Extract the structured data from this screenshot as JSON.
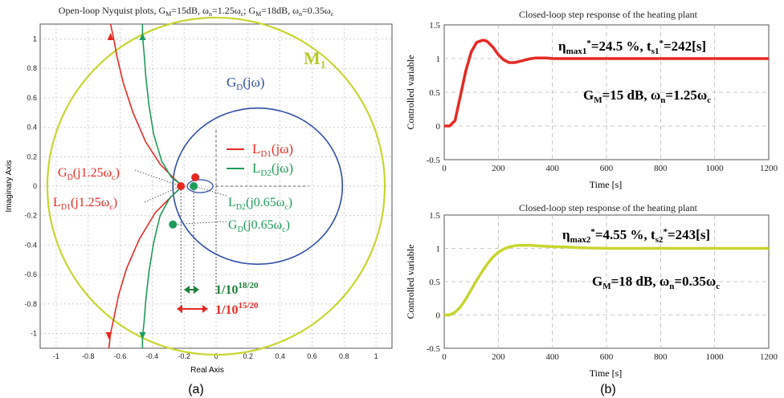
{
  "colors": {
    "red": "#e52a24",
    "green": "#1e9b5a",
    "blue": "#2e4ea6",
    "yellow_green": "#c8d630",
    "dark_green": "#1e7f3a",
    "grid": "#b8b8b8",
    "axis_text": "#222222"
  },
  "figure_labels": {
    "a": "(a)",
    "b": "(b)"
  },
  "chart_data": [
    {
      "type": "line",
      "title": "Open-loop Nyquist plots, G_M=15dB, ω_n=1.25ω_c; G_M=18dB, ω_n=0.35ω_c",
      "title_parts": {
        "p1": "Open-loop Nyquist plots, G",
        "s1": "M",
        "p2": "=15dB, ω",
        "s2": "n",
        "p3": "=1.25ω",
        "s3": "c",
        "p4": "; G",
        "s4": "M",
        "p5": "=18dB, ω",
        "s5": "n",
        "p6": "=0.35ω",
        "s6": "c"
      },
      "xlabel": "Real Axis",
      "ylabel": "Imaginary Axis",
      "xlim": [
        -1.1,
        1.1
      ],
      "ylim": [
        -1.1,
        1.1
      ],
      "xticks": [
        -1,
        -0.8,
        -0.6,
        -0.4,
        -0.2,
        0,
        0.2,
        0.4,
        0.6,
        0.8,
        1
      ],
      "xtick_labels": [
        "-1",
        "-0.8",
        "-0.6",
        "-0.4",
        "-0.2",
        "0",
        "0.2",
        "0.4",
        "0.6",
        "0.8",
        "1"
      ],
      "yticks": [
        -1,
        -0.8,
        -0.6,
        -0.4,
        -0.2,
        0,
        0.2,
        0.4,
        0.6,
        0.8,
        1
      ],
      "ytick_labels": [
        "-1",
        "-0.8",
        "-0.6",
        "-0.4",
        "-0.2",
        "0",
        "0.2",
        "0.4",
        "0.6",
        "0.8",
        "1"
      ],
      "grid": true,
      "series": [
        {
          "name": "G_D(jω)",
          "color": "#2e4ea6",
          "x": [
            -0.08,
            -0.14,
            -0.2,
            -0.24,
            -0.27,
            -0.28,
            -0.27,
            -0.23,
            -0.17,
            -0.08,
            0.02,
            0.13,
            0.24,
            0.35,
            0.45,
            0.55,
            0.63,
            0.7,
            0.75,
            0.78,
            0.79,
            0.79,
            0.78,
            0.75,
            0.7,
            0.63,
            0.55,
            0.45,
            0.35,
            0.24,
            0.13,
            0.02,
            -0.08,
            -0.17,
            -0.23,
            -0.27,
            -0.28,
            -0.27,
            -0.24,
            -0.2,
            -0.14,
            -0.08,
            -0.03,
            0.0,
            0.01,
            0.0,
            -0.04,
            -0.1,
            -0.16,
            -0.2,
            -0.22
          ],
          "y": [
            0.31,
            0.35,
            0.38,
            0.39,
            0.36,
            0.3,
            0.22,
            0.14,
            0.06,
            0.0,
            -0.05,
            0.02,
            -0.03,
            0.01,
            -0.02,
            0.01,
            -0.01,
            0.0,
            0.0,
            0.0,
            0.0,
            0.0,
            0.0,
            0.0,
            0.0,
            0.0,
            0.0,
            0.0,
            0.0,
            0.0,
            0.0,
            0.0,
            0.0,
            0.0,
            0.0,
            0.0,
            0.0,
            0.0,
            0.0,
            0.0,
            0.0,
            0.0,
            0.0,
            0.0,
            0.0,
            0.0,
            0.0,
            0.0,
            0.0,
            0.0,
            0.0
          ],
          "note": "closed loop traced as circle-like curve"
        },
        {
          "name": "L_D1(jω)",
          "color": "#e52a24"
        },
        {
          "name": "L_D2(jω)",
          "color": "#1e9b5a"
        },
        {
          "name": "M_1",
          "color": "#c8d630"
        }
      ],
      "nyquist_shapes": {
        "GD_circle": {
          "center": [
            0.26,
            0.0
          ],
          "radius": 0.53
        },
        "M1_circle": {
          "center": [
            0.0,
            0.0
          ],
          "radius": 1.055
        },
        "LD1_upper": {
          "x": [
            -0.23,
            -0.27,
            -0.35,
            -0.44,
            -0.52,
            -0.58,
            -0.62,
            -0.64,
            -0.66
          ],
          "y": [
            0.02,
            0.06,
            0.15,
            0.3,
            0.5,
            0.7,
            0.88,
            1.0,
            1.1
          ]
        },
        "LD1_lower": {
          "x": [
            -0.23,
            -0.28,
            -0.38,
            -0.48,
            -0.56,
            -0.61,
            -0.64,
            -0.66,
            -0.67
          ],
          "y": [
            -0.02,
            -0.07,
            -0.18,
            -0.36,
            -0.56,
            -0.74,
            -0.9,
            -1.0,
            -1.1
          ]
        },
        "LD2_upper": {
          "x": [
            -0.23,
            -0.28,
            -0.34,
            -0.39,
            -0.42,
            -0.44,
            -0.45,
            -0.46,
            -0.46
          ],
          "y": [
            0.02,
            0.06,
            0.17,
            0.35,
            0.55,
            0.75,
            0.9,
            1.02,
            1.1
          ]
        },
        "LD2_lower": {
          "x": [
            -0.23,
            -0.29,
            -0.35,
            -0.39,
            -0.42,
            -0.44,
            -0.45,
            -0.46,
            -0.46
          ],
          "y": [
            -0.02,
            -0.08,
            -0.2,
            -0.38,
            -0.58,
            -0.78,
            -0.92,
            -1.02,
            -1.1
          ]
        }
      },
      "points": [
        {
          "name": "G_D(j1.25ω_c)",
          "x": -0.22,
          "y": 0.0,
          "color": "#e52a24"
        },
        {
          "name": "L_D1(j1.25ω_c)",
          "x": -0.13,
          "y": 0.06,
          "color": "#e52a24"
        },
        {
          "name": "L_D2(j0.65ω_c)",
          "x": -0.14,
          "y": 0.0,
          "color": "#1e9b5a"
        },
        {
          "name": "G_D(j0.65ω_c)",
          "x": -0.27,
          "y": -0.26,
          "color": "#1e9b5a"
        }
      ],
      "annotations": {
        "M1": "M",
        "M1_sub": "1",
        "GD": "G",
        "GD_sub": "D",
        "GD_rest": "(jω)",
        "LD1": "L",
        "LD1_sub": "D1",
        "LD1_rest": "(jω)",
        "LD2": "L",
        "LD2_sub": "D2",
        "LD2_rest": "(jω)",
        "GD125": "G",
        "GD125_sub": "D",
        "GD125_rest": "(j1.25ω",
        "GD125_sub2": "c",
        "GD125_end": ")",
        "LD1125": "L",
        "LD1125_sub": "D1",
        "LD1125_rest": "(j1.25ω",
        "LD1125_sub2": "c",
        "LD1125_end": ")",
        "LD2065": "L",
        "LD2065_sub": "D2",
        "LD2065_rest": "(j0.65ω",
        "LD2065_sub2": "c",
        "LD2065_end": ")",
        "GD065": "G",
        "GD065_sub": "D",
        "GD065_rest": "(j0.65ω",
        "GD065_sub2": "c",
        "GD065_end": ")",
        "gm18": "1/10",
        "gm18_sup": "18/20",
        "gm15": "1/10",
        "gm15_sup": "15/20"
      }
    },
    {
      "type": "line",
      "title": "Closed-loop step response of the heating plant",
      "xlabel": "Time [s]",
      "ylabel": "Controlled variable",
      "xlim": [
        0,
        1200
      ],
      "ylim": [
        -0.5,
        1.5
      ],
      "xticks": [
        0,
        200,
        400,
        600,
        800,
        1000,
        1200
      ],
      "xtick_labels": [
        "0",
        "200",
        "400",
        "600",
        "800",
        "1000",
        "1200"
      ],
      "yticks": [
        -0.5,
        0,
        0.5,
        1,
        1.5
      ],
      "ytick_labels": [
        "-0.5",
        "0",
        "0.5",
        "1",
        "1.5"
      ],
      "grid": true,
      "series": [
        {
          "name": "",
          "color": "#e52a24",
          "x": [
            0,
            20,
            40,
            60,
            80,
            100,
            120,
            140,
            150,
            160,
            180,
            200,
            220,
            240,
            260,
            280,
            300,
            320,
            340,
            360,
            380,
            400,
            450,
            500,
            600,
            700,
            800,
            900,
            1000,
            1100,
            1200
          ],
          "y": [
            0,
            0,
            0.08,
            0.45,
            0.82,
            1.1,
            1.24,
            1.27,
            1.27,
            1.25,
            1.17,
            1.06,
            0.98,
            0.94,
            0.94,
            0.96,
            0.98,
            1.0,
            1.01,
            1.01,
            1.01,
            1.0,
            1.0,
            1.0,
            1.0,
            1.0,
            1.0,
            1.0,
            1.0,
            1.0,
            1.0
          ]
        }
      ],
      "annotations": {
        "eta": "η",
        "eta_sub": "max1",
        "eta_sup": "*",
        "eta_val": "=24.5 %, t",
        "t_sub": "s1",
        "t_sup": "*",
        "t_val": "=242[s]",
        "gm": "G",
        "gm_sub": "M",
        "gm_rest": "=15 dB, ω",
        "wn_sub": "n",
        "wn_rest": "=1.25ω",
        "wc_sub": "c"
      }
    },
    {
      "type": "line",
      "title": "Closed-loop step response of the heating plant",
      "xlabel": "Time [s]",
      "ylabel": "Controlled variable",
      "xlim": [
        0,
        1200
      ],
      "ylim": [
        -0.5,
        1.5
      ],
      "xticks": [
        0,
        200,
        400,
        600,
        800,
        1000,
        1200
      ],
      "xtick_labels": [
        "0",
        "200",
        "400",
        "600",
        "800",
        "1000",
        "1200"
      ],
      "yticks": [
        -0.5,
        0,
        0.5,
        1,
        1.5
      ],
      "ytick_labels": [
        "-0.5",
        "0",
        "0.5",
        "1",
        "1.5"
      ],
      "grid": true,
      "series": [
        {
          "name": "",
          "color": "#c8d630",
          "x": [
            0,
            20,
            40,
            60,
            80,
            100,
            120,
            140,
            160,
            180,
            200,
            220,
            240,
            260,
            280,
            300,
            320,
            340,
            360,
            380,
            400,
            450,
            500,
            600,
            700,
            800,
            900,
            1000,
            1100,
            1200
          ],
          "y": [
            0,
            0,
            0.04,
            0.12,
            0.24,
            0.38,
            0.52,
            0.65,
            0.77,
            0.87,
            0.94,
            0.99,
            1.02,
            1.04,
            1.045,
            1.045,
            1.045,
            1.04,
            1.035,
            1.03,
            1.025,
            1.02,
            1.01,
            1.0,
            1.0,
            1.0,
            1.0,
            1.0,
            1.0,
            1.0
          ]
        }
      ],
      "annotations": {
        "eta": "η",
        "eta_sub": "max2",
        "eta_sup": "*",
        "eta_val": "=4.55 %, t",
        "t_sub": "s2",
        "t_sup": "*",
        "t_val": "=243[s]",
        "gm": "G",
        "gm_sub": "M",
        "gm_rest": "=18 dB, ω",
        "wn_sub": "n",
        "wn_rest": "=0.35ω",
        "wc_sub": "c"
      }
    }
  ]
}
